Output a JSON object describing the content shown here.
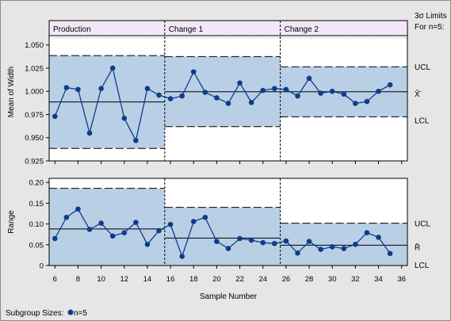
{
  "chart_data": [
    {
      "type": "line",
      "ylabel": "Mean of Width",
      "ylim": [
        0.925,
        1.06
      ],
      "yticks": [
        0.925,
        0.95,
        0.975,
        1.0,
        1.025,
        1.05
      ],
      "ytick_labels": [
        "0.925",
        "0.950",
        "0.975",
        "1.000",
        "1.025",
        "1.050"
      ],
      "limit_labels": [
        "UCL",
        "X̄̄",
        "LCL"
      ],
      "phases": [
        {
          "name": "Production",
          "x_start": 5.5,
          "x_end": 15.5,
          "lcl": 0.9385,
          "center": 0.9885,
          "ucl": 1.0385
        },
        {
          "name": "Change 1",
          "x_start": 15.5,
          "x_end": 25.5,
          "lcl": 0.962,
          "center": 0.9995,
          "ucl": 1.0375
        },
        {
          "name": "Change 2",
          "x_start": 25.5,
          "x_end": 36.5,
          "lcl": 0.9725,
          "center": 0.9995,
          "ucl": 1.0265
        }
      ],
      "x": [
        6,
        7,
        8,
        9,
        10,
        11,
        12,
        13,
        14,
        15,
        16,
        17,
        18,
        19,
        20,
        21,
        22,
        23,
        24,
        25,
        26,
        27,
        28,
        29,
        30,
        31,
        32,
        33,
        34,
        35
      ],
      "values": [
        0.973,
        1.004,
        1.002,
        0.955,
        1.003,
        1.025,
        0.971,
        0.947,
        1.003,
        0.996,
        0.992,
        0.995,
        1.021,
        0.999,
        0.993,
        0.987,
        1.009,
        0.988,
        1.001,
        1.003,
        1.002,
        0.995,
        1.014,
        0.998,
        1.0,
        0.997,
        0.987,
        0.989,
        1.0,
        1.007
      ]
    },
    {
      "type": "line",
      "ylabel": "Range",
      "ylim": [
        0,
        0.21
      ],
      "yticks": [
        0,
        0.05,
        0.1,
        0.15,
        0.2
      ],
      "ytick_labels": [
        "0",
        "0.05",
        "0.10",
        "0.15",
        "0.20"
      ],
      "limit_labels": [
        "UCL",
        "R̄",
        "LCL"
      ],
      "phases": [
        {
          "x_start": 5.5,
          "x_end": 15.5,
          "lcl": 0,
          "center": 0.088,
          "ucl": 0.186
        },
        {
          "x_start": 15.5,
          "x_end": 25.5,
          "lcl": 0,
          "center": 0.066,
          "ucl": 0.14
        },
        {
          "x_start": 25.5,
          "x_end": 36.5,
          "lcl": 0,
          "center": 0.049,
          "ucl": 0.102
        }
      ],
      "x": [
        6,
        7,
        8,
        9,
        10,
        11,
        12,
        13,
        14,
        15,
        16,
        17,
        18,
        19,
        20,
        21,
        22,
        23,
        24,
        25,
        26,
        27,
        28,
        29,
        30,
        31,
        32,
        33,
        34,
        35
      ],
      "values": [
        0.065,
        0.116,
        0.136,
        0.087,
        0.102,
        0.071,
        0.079,
        0.104,
        0.051,
        0.084,
        0.099,
        0.022,
        0.106,
        0.116,
        0.058,
        0.041,
        0.065,
        0.061,
        0.055,
        0.053,
        0.059,
        0.03,
        0.058,
        0.039,
        0.045,
        0.041,
        0.051,
        0.079,
        0.068,
        0.029
      ]
    }
  ],
  "xaxis": {
    "label": "Sample Number",
    "ticks": [
      6,
      8,
      10,
      12,
      14,
      16,
      18,
      20,
      22,
      24,
      26,
      28,
      30,
      32,
      34,
      36
    ],
    "xlim": [
      5.5,
      36.5
    ]
  },
  "header": {
    "sigma_label": "3σ Limits",
    "n_label": "For n=5:"
  },
  "footer": {
    "subgroup_label": "Subgroup Sizes:",
    "n_label": "n=5"
  },
  "colors": {
    "band": "#b8cfe6",
    "point": "#0f3c8a",
    "line": "#000000",
    "header_band": "#f2e6f7",
    "frame_bg": "#e6e6e6"
  }
}
